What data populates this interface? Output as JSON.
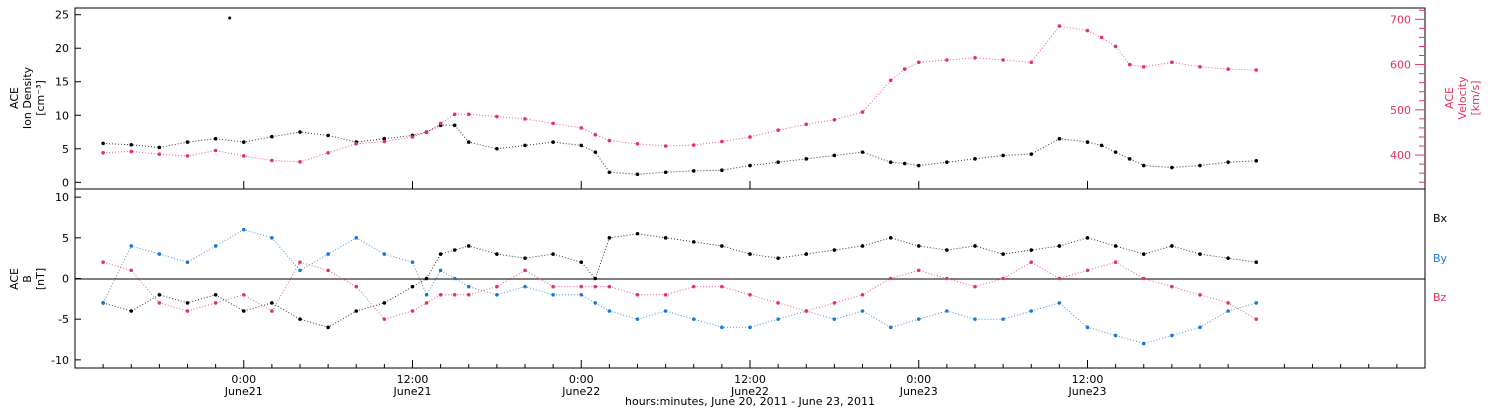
{
  "chart_data": [
    {
      "type": "scatter",
      "panel": "top",
      "ylabel_left": [
        "ACE",
        "Ion Density",
        "[cm⁻³]"
      ],
      "ylabel_right": [
        "ACE",
        "Velocity",
        "[km/s]"
      ],
      "ylim_left": [
        -1,
        26
      ],
      "yticks_left": [
        "0",
        "5",
        "10",
        "15",
        "20",
        "25"
      ],
      "ylim_right": [
        325,
        725
      ],
      "yticks_right": [
        "400",
        "500",
        "600",
        "700"
      ],
      "colors": {
        "density": "#000000",
        "velocity": "#e8325a"
      },
      "series": [
        {
          "axis": "left",
          "color": "#000000",
          "x": [
            -10,
            -8,
            -6,
            -4,
            -2,
            0,
            2,
            4,
            6,
            8,
            10,
            12,
            13,
            14,
            15,
            16,
            18,
            20,
            22,
            24,
            25,
            26,
            28,
            30,
            32,
            34,
            36,
            38,
            40,
            42,
            44,
            46,
            47,
            48,
            50,
            52,
            54,
            56,
            58,
            60,
            61,
            62,
            63,
            64,
            66,
            68,
            70,
            72
          ],
          "y": [
            5.8,
            5.6,
            5.2,
            6.0,
            6.5,
            6.0,
            6.8,
            7.5,
            7.0,
            6.0,
            6.5,
            7.0,
            7.5,
            8.5,
            8.5,
            6.0,
            5.0,
            5.5,
            6.0,
            5.5,
            4.5,
            1.5,
            1.2,
            1.5,
            1.7,
            1.8,
            2.5,
            3.0,
            3.5,
            4.0,
            4.5,
            3.0,
            2.8,
            2.5,
            3.0,
            3.5,
            4.0,
            4.2,
            6.5,
            6.0,
            5.5,
            4.5,
            3.5,
            2.5,
            2.2,
            2.5,
            3.0,
            3.2
          ]
        },
        {
          "axis": "right",
          "color": "#e8325a",
          "x": [
            -10,
            -8,
            -6,
            -4,
            -2,
            0,
            2,
            4,
            6,
            8,
            10,
            12,
            13,
            14,
            15,
            16,
            18,
            20,
            22,
            24,
            25,
            26,
            28,
            30,
            32,
            34,
            36,
            38,
            40,
            42,
            44,
            46,
            47,
            48,
            50,
            52,
            54,
            56,
            58,
            60,
            61,
            62,
            63,
            64,
            66,
            68,
            70,
            72
          ],
          "y": [
            405,
            408,
            402,
            398,
            410,
            398,
            388,
            385,
            405,
            425,
            430,
            440,
            450,
            470,
            490,
            490,
            485,
            480,
            470,
            460,
            445,
            432,
            425,
            420,
            422,
            430,
            440,
            455,
            468,
            478,
            495,
            565,
            590,
            605,
            610,
            615,
            610,
            605,
            685,
            675,
            660,
            640,
            600,
            595,
            605,
            595,
            590,
            588
          ]
        }
      ],
      "annotations": [
        {
          "x": -1.0,
          "y": 24.5,
          "axis": "left",
          "color": "#000000"
        }
      ]
    },
    {
      "type": "scatter",
      "panel": "bottom",
      "ylabel": [
        "ACE",
        "B",
        "[nT]"
      ],
      "ylim": [
        -11,
        11
      ],
      "yticks": [
        "-10",
        "-5",
        "0",
        "5",
        "10"
      ],
      "zero_line": true,
      "legend": [
        "Bx",
        "By",
        "Bz"
      ],
      "series": [
        {
          "name": "Bx",
          "color": "#000000",
          "x": [
            -10,
            -8,
            -6,
            -4,
            -2,
            0,
            2,
            4,
            6,
            8,
            10,
            12,
            13,
            14,
            15,
            16,
            18,
            20,
            22,
            24,
            25,
            26,
            28,
            30,
            32,
            34,
            36,
            38,
            40,
            42,
            44,
            46,
            48,
            50,
            52,
            54,
            56,
            58,
            60,
            62,
            64,
            66,
            68,
            70,
            72
          ],
          "y": [
            -3,
            -4,
            -2,
            -3,
            -2,
            -4,
            -3,
            -5,
            -6,
            -4,
            -3,
            -1,
            0,
            3,
            3.5,
            4,
            3,
            2.5,
            3,
            2,
            0,
            5,
            5.5,
            5,
            4.5,
            4,
            3,
            2.5,
            3,
            3.5,
            4,
            5,
            4,
            3.5,
            4,
            3,
            3.5,
            4,
            5,
            4,
            3,
            4,
            3,
            2.5,
            2
          ]
        },
        {
          "name": "By",
          "color": "#1a78d4",
          "x": [
            -10,
            -8,
            -6,
            -4,
            -2,
            0,
            2,
            4,
            6,
            8,
            10,
            12,
            13,
            14,
            15,
            16,
            18,
            20,
            22,
            24,
            25,
            26,
            28,
            30,
            32,
            34,
            36,
            38,
            40,
            42,
            44,
            46,
            48,
            50,
            52,
            54,
            56,
            58,
            60,
            62,
            64,
            66,
            68,
            70,
            72
          ],
          "y": [
            -3,
            4,
            3,
            2,
            4,
            6,
            5,
            1,
            3,
            5,
            3,
            2,
            -2,
            1,
            0,
            -1,
            -2,
            -1,
            -2,
            -2,
            -3,
            -4,
            -5,
            -4,
            -5,
            -6,
            -6,
            -5,
            -4,
            -5,
            -4,
            -6,
            -5,
            -4,
            -5,
            -5,
            -4,
            -3,
            -6,
            -7,
            -8,
            -7,
            -6,
            -4,
            -3
          ]
        },
        {
          "name": "Bz",
          "color": "#e8325a",
          "x": [
            -10,
            -8,
            -6,
            -4,
            -2,
            0,
            2,
            4,
            6,
            8,
            10,
            12,
            13,
            14,
            15,
            16,
            18,
            20,
            22,
            24,
            25,
            26,
            28,
            30,
            32,
            34,
            36,
            38,
            40,
            42,
            44,
            46,
            48,
            50,
            52,
            54,
            56,
            58,
            60,
            62,
            64,
            66,
            68,
            70,
            72
          ],
          "y": [
            2,
            1,
            -3,
            -4,
            -3,
            -2,
            -4,
            2,
            1,
            -1,
            -5,
            -4,
            -3,
            -2,
            -2,
            -2,
            -1,
            1,
            -1,
            -1,
            -1,
            -1,
            -2,
            -2,
            -1,
            -1,
            -2,
            -3,
            -4,
            -3,
            -2,
            0,
            1,
            0,
            -1,
            0,
            2,
            0,
            1,
            2,
            0,
            -1,
            -2,
            -3,
            -5
          ]
        }
      ]
    }
  ],
  "x_axis": {
    "xlim": [
      -12,
      84
    ],
    "ticks": [
      {
        "x": 0,
        "line1": "0:00",
        "line2": "June21"
      },
      {
        "x": 12,
        "line1": "12:00",
        "line2": "June21"
      },
      {
        "x": 24,
        "line1": "0:00",
        "line2": "June22"
      },
      {
        "x": 36,
        "line1": "12:00",
        "line2": "June22"
      },
      {
        "x": 48,
        "line1": "0:00",
        "line2": "June23"
      },
      {
        "x": 60,
        "line1": "12:00",
        "line2": "June23"
      }
    ],
    "xlabel": "hours:minutes, June 20, 2011 - June 23, 2011"
  }
}
